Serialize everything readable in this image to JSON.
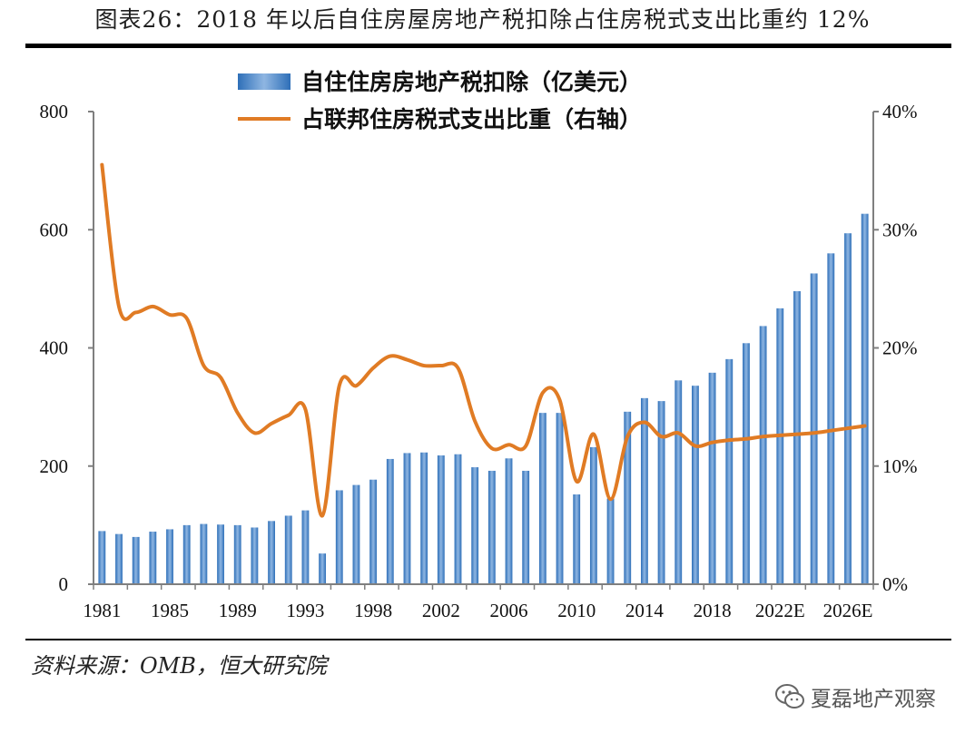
{
  "title": "图表26：2018 年以后自住房屋房地产税扣除占住房税式支出比重约 12%",
  "source": "资料来源：OMB，恒大研究院",
  "watermark": {
    "text": "夏磊地产观察",
    "icon": "wechat-icon"
  },
  "colors": {
    "bar": "#4a86c8",
    "line": "#e07b24",
    "axis": "#7f7f7f"
  },
  "chart_data": {
    "type": "bar",
    "x": [
      "1981",
      "1982",
      "1983",
      "1984",
      "1985",
      "1986",
      "1987",
      "1988",
      "1989",
      "1990",
      "1991",
      "1992",
      "1993",
      "1994",
      "1995",
      "1997",
      "1998",
      "1999",
      "2000",
      "2001",
      "2002",
      "2003",
      "2004",
      "2005",
      "2006",
      "2007",
      "2008",
      "2009",
      "2010",
      "2011",
      "2012",
      "2013",
      "2014",
      "2015",
      "2016",
      "2017",
      "2018",
      "2019",
      "2020",
      "2021",
      "2022E",
      "2023E",
      "2024E",
      "2025E",
      "2026E",
      "2027E"
    ],
    "x_tick_labels": [
      "1981",
      "1985",
      "1989",
      "1993",
      "1998",
      "2002",
      "2006",
      "2010",
      "2014",
      "2018",
      "2022E",
      "2026E"
    ],
    "series": [
      {
        "name": "自住住房房地产税扣除（亿美元）",
        "type": "bar",
        "axis": "left",
        "values": [
          90,
          85,
          80,
          89,
          93,
          100,
          102,
          101,
          100,
          96,
          107,
          116,
          125,
          52,
          159,
          168,
          177,
          212,
          222,
          223,
          218,
          220,
          198,
          192,
          213,
          192,
          290,
          290,
          152,
          232,
          145,
          292,
          315,
          310,
          345,
          336,
          358,
          381,
          408,
          437,
          467,
          496,
          526,
          560,
          594,
          627
        ]
      },
      {
        "name": "占联邦住房税式支出比重（右轴）",
        "type": "line",
        "axis": "right",
        "values": [
          35.5,
          23.5,
          23.0,
          23.5,
          22.8,
          22.5,
          18.5,
          17.5,
          14.5,
          12.8,
          13.6,
          14.3,
          14.8,
          5.8,
          16.8,
          16.8,
          18.3,
          19.3,
          19.0,
          18.5,
          18.5,
          18.3,
          13.8,
          11.5,
          11.8,
          11.7,
          16.2,
          15.6,
          8.7,
          12.7,
          7.2,
          12.5,
          13.7,
          12.5,
          12.8,
          11.7,
          12.0,
          12.2,
          12.3,
          12.5,
          12.6,
          12.7,
          12.8,
          13.0,
          13.2,
          13.4
        ]
      }
    ],
    "y_left": {
      "min": 0,
      "max": 800,
      "ticks": [
        "0",
        "200",
        "400",
        "600",
        "800"
      ]
    },
    "y_right": {
      "min": 0,
      "max": 40,
      "ticks": [
        "0%",
        "10%",
        "20%",
        "30%",
        "40%"
      ]
    },
    "legend": {
      "placement": "top-center"
    },
    "grid": false
  }
}
